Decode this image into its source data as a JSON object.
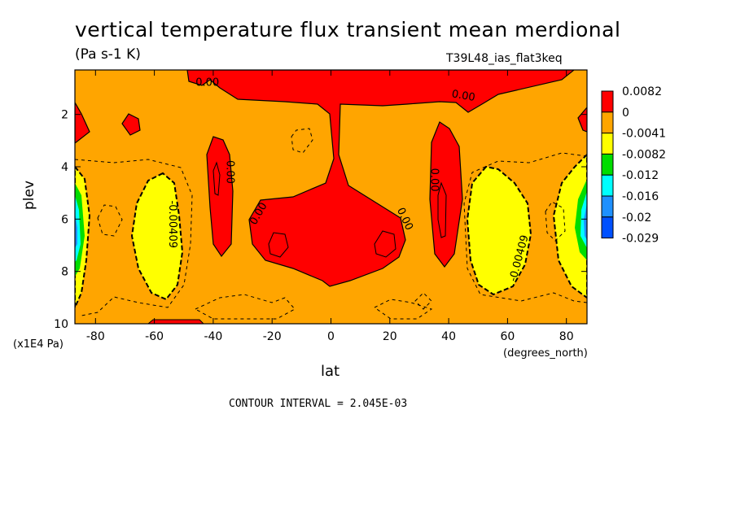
{
  "title": "vertical temperature flux transient mean merdional",
  "units": "(Pa s-1 K)",
  "run_id": "T39L48_ias_flat3keq",
  "y_label": "plev",
  "y_unit": "(x1E4 Pa)",
  "x_label": "lat",
  "x_unit": "(degrees_north)",
  "contour_interval": "CONTOUR INTERVAL = 2.045E-03",
  "chart_data": {
    "type": "heatmap",
    "xlim": [
      -87,
      87
    ],
    "ylim": [
      10,
      0.3
    ],
    "x_ticks": [
      -80,
      -60,
      -40,
      -20,
      0,
      20,
      40,
      60,
      80
    ],
    "y_ticks": [
      2,
      4,
      6,
      8,
      10
    ],
    "colorbar": {
      "labels": [
        "0.0082",
        "0",
        "-0.0041",
        "-0.0082",
        "-0.012",
        "-0.016",
        "-0.02",
        "-0.029"
      ],
      "colors": [
        "#ff0000",
        "#ffa500",
        "#ffff00",
        "#00dd00",
        "#00ffff",
        "#1e90ff",
        "#0050ff"
      ]
    },
    "contour_labels": [
      {
        "text": "0.00",
        "lat": -42,
        "plev": 0.8,
        "angle": 0
      },
      {
        "text": "0.00",
        "lat": 45,
        "plev": 1.3,
        "angle": 10
      },
      {
        "text": "0.00",
        "lat": -34.5,
        "plev": 4.2,
        "angle": 90
      },
      {
        "text": "0.00",
        "lat": 35,
        "plev": 4.5,
        "angle": 90
      },
      {
        "text": "0.00",
        "lat": -24.5,
        "plev": 5.8,
        "angle": -60
      },
      {
        "text": "0.00",
        "lat": 25,
        "plev": 6.0,
        "angle": 65
      },
      {
        "text": "-0.00409",
        "lat": -54,
        "plev": 6.2,
        "angle": 90
      },
      {
        "text": "-0.00409",
        "lat": 64,
        "plev": 7.5,
        "angle": -75
      }
    ]
  }
}
